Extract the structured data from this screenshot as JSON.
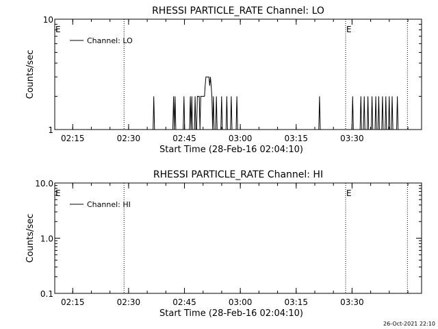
{
  "chart_data": [
    {
      "type": "line",
      "title": "RHESSI PARTICLE_RATE Channel: LO",
      "xlabel": "Start Time (28-Feb-16 02:04:10)",
      "ylabel": "Counts/sec",
      "yscale": "log",
      "ylim": [
        1,
        10
      ],
      "y_ticks": [
        "1",
        "10"
      ],
      "xlim_minutes": [
        6.0,
        104.5
      ],
      "x_ticks": [
        "02:15",
        "02:30",
        "02:45",
        "03:00",
        "03:15",
        "03:30"
      ],
      "vlines_minutes": [
        24.6,
        84.1,
        100.7
      ],
      "markers": [
        {
          "text": "E",
          "at": 6.0
        },
        {
          "text": "E",
          "at": 84.1
        }
      ],
      "legend": {
        "label": "Channel: LO",
        "position": "top-left"
      },
      "series": [
        {
          "name": "Channel: LO",
          "color": "#000000",
          "points": [
            [
              6,
              1
            ],
            [
              32.4,
              1
            ],
            [
              32.6,
              2
            ],
            [
              32.8,
              1
            ],
            [
              37.7,
              1
            ],
            [
              37.9,
              2
            ],
            [
              38.1,
              1
            ],
            [
              38.3,
              2
            ],
            [
              38.5,
              1
            ],
            [
              40.5,
              1
            ],
            [
              40.7,
              2
            ],
            [
              40.9,
              1
            ],
            [
              42.2,
              1
            ],
            [
              42.4,
              2
            ],
            [
              42.6,
              1
            ],
            [
              42.8,
              2
            ],
            [
              43.0,
              1
            ],
            [
              43.5,
              1
            ],
            [
              43.7,
              2
            ],
            [
              43.9,
              1
            ],
            [
              44.1,
              1
            ],
            [
              44.3,
              2
            ],
            [
              44.8,
              2
            ],
            [
              45.0,
              1
            ],
            [
              45.2,
              2
            ],
            [
              46.2,
              2
            ],
            [
              46.4,
              2.5
            ],
            [
              46.6,
              3
            ],
            [
              47.4,
              3
            ],
            [
              47.6,
              2.5
            ],
            [
              47.8,
              3
            ],
            [
              48.0,
              2.5
            ],
            [
              48.2,
              2
            ],
            [
              48.4,
              1
            ],
            [
              48.6,
              2
            ],
            [
              48.8,
              1
            ],
            [
              49.2,
              1
            ],
            [
              49.4,
              2
            ],
            [
              49.6,
              1
            ],
            [
              50.6,
              1
            ],
            [
              50.8,
              2
            ],
            [
              51.0,
              1
            ],
            [
              52.0,
              1
            ],
            [
              52.2,
              2
            ],
            [
              52.4,
              1
            ],
            [
              53.2,
              1
            ],
            [
              53.4,
              2
            ],
            [
              53.6,
              1
            ],
            [
              54.7,
              1
            ],
            [
              54.9,
              2
            ],
            [
              55.1,
              1
            ],
            [
              76.9,
              1
            ],
            [
              77.1,
              2
            ],
            [
              77.3,
              1
            ],
            [
              85.8,
              1
            ],
            [
              86.0,
              2
            ],
            [
              86.2,
              1
            ],
            [
              88.0,
              1
            ],
            [
              88.2,
              2
            ],
            [
              88.4,
              1
            ],
            [
              88.9,
              1
            ],
            [
              89.1,
              2
            ],
            [
              89.3,
              1
            ],
            [
              89.9,
              1
            ],
            [
              90.1,
              2
            ],
            [
              90.3,
              1
            ],
            [
              91.0,
              1
            ],
            [
              91.2,
              2
            ],
            [
              91.4,
              1
            ],
            [
              92.0,
              1
            ],
            [
              92.2,
              2
            ],
            [
              92.4,
              1
            ],
            [
              92.8,
              1
            ],
            [
              93.0,
              2
            ],
            [
              93.2,
              1
            ],
            [
              93.8,
              1
            ],
            [
              94.0,
              2
            ],
            [
              94.2,
              1
            ],
            [
              94.7,
              1
            ],
            [
              94.9,
              2
            ],
            [
              95.1,
              1
            ],
            [
              95.6,
              1
            ],
            [
              95.8,
              2
            ],
            [
              96.0,
              1
            ],
            [
              96.4,
              1
            ],
            [
              96.6,
              2
            ],
            [
              96.8,
              1
            ],
            [
              97.8,
              1
            ],
            [
              98.0,
              2
            ],
            [
              98.2,
              1
            ],
            [
              104.5,
              1
            ]
          ]
        }
      ]
    },
    {
      "type": "line",
      "title": "RHESSI PARTICLE_RATE Channel: HI",
      "xlabel": "Start Time (28-Feb-16 02:04:10)",
      "ylabel": "Counts/sec",
      "yscale": "log",
      "ylim": [
        0.1,
        10
      ],
      "y_ticks": [
        "0.1",
        "1.0",
        "10.0"
      ],
      "xlim_minutes": [
        6.0,
        104.5
      ],
      "x_ticks": [
        "02:15",
        "02:30",
        "02:45",
        "03:00",
        "03:15",
        "03:30"
      ],
      "vlines_minutes": [
        24.6,
        84.1,
        100.7
      ],
      "markers": [
        {
          "text": "E",
          "at": 6.0
        },
        {
          "text": "E",
          "at": 84.1
        }
      ],
      "legend": {
        "label": "Channel: HI",
        "position": "top-left"
      },
      "series": [
        {
          "name": "Channel: HI",
          "color": "#000000",
          "points": []
        }
      ]
    }
  ],
  "footer_timestamp": "26-Oct-2021 22:10"
}
